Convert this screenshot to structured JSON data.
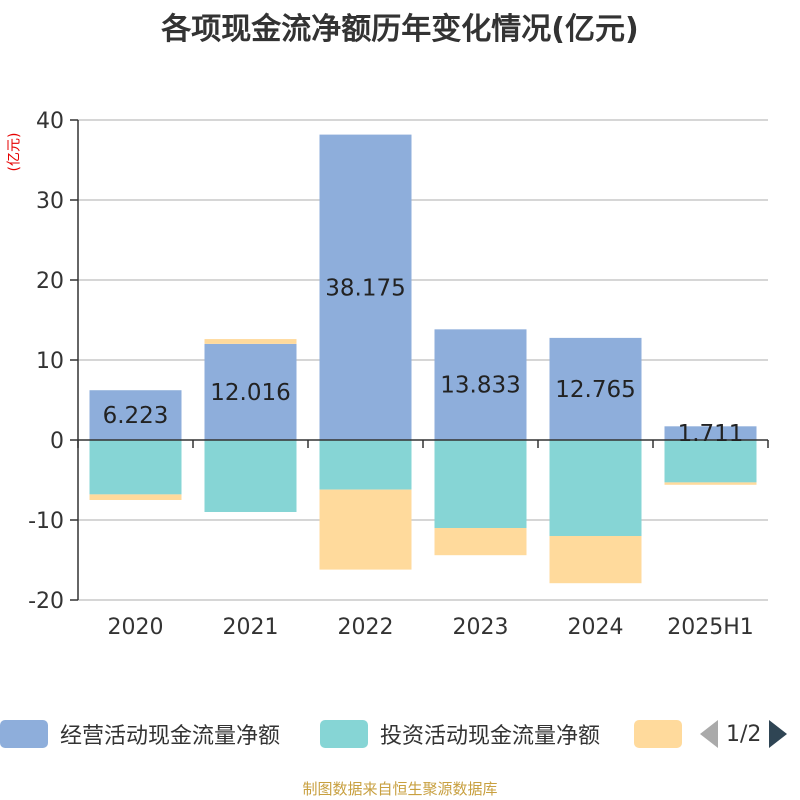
{
  "title": "各项现金流净额历年变化情况(亿元)",
  "unit": "(亿元)",
  "source": "制图数据来自恒生聚源数据库",
  "pager": {
    "text": "1/2"
  },
  "legend": [
    {
      "label": "经营活动现金流量净额",
      "color": "#8eaedb"
    },
    {
      "label": "投资活动现金流量净额",
      "color": "#86d5d5"
    },
    {
      "label": "",
      "color": "#ffda9c"
    }
  ],
  "chart_data": {
    "type": "bar",
    "stacked": true,
    "categories": [
      "2020",
      "2021",
      "2022",
      "2023",
      "2024",
      "2025H1"
    ],
    "series": [
      {
        "name": "经营活动现金流量净额",
        "color": "#8eaedb",
        "values": [
          6.223,
          12.016,
          38.175,
          13.833,
          12.765,
          1.711
        ],
        "labels": [
          "6.223",
          "12.016",
          "38.175",
          "13.833",
          "12.765",
          "1.711"
        ]
      },
      {
        "name": "投资活动现金流量净额",
        "color": "#86d5d5",
        "values": [
          -6.8,
          -9.0,
          -6.2,
          -11.0,
          -12.0,
          -5.3
        ]
      },
      {
        "color": "#ffda9c",
        "values": [
          -0.7,
          0.6,
          -10.0,
          -3.4,
          -5.9,
          -0.3
        ]
      }
    ],
    "yticks": [
      -20,
      -10,
      0,
      10,
      20,
      30,
      40
    ],
    "ylim": [
      -20,
      40
    ],
    "grid": true,
    "legend_position": "bottom"
  }
}
